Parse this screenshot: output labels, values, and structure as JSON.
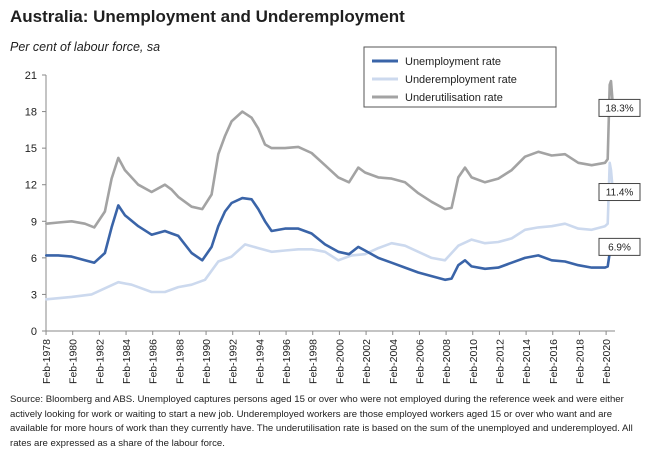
{
  "title": "Australia: Unemployment and Underemployment",
  "subtitle": "Per cent of labour force, sa",
  "source": "Source: Bloomberg and ABS. Unemployed captures persons aged 15 or over who were not employed during the reference week and were either actively looking for work or waiting to start a new job.  Underemployed workers are those employed workers aged 15 or over who want and are available for more hours of work than they currently have.  The underutilisation rate is based on the sum of the unemployed and underemployed. All rates are expressed as a share of the labour force.",
  "chart_data": {
    "type": "line",
    "ylim": [
      0,
      21
    ],
    "yticks": [
      0,
      3,
      6,
      9,
      12,
      15,
      18,
      21
    ],
    "xlim": [
      1978.08,
      2020.75
    ],
    "xticks": [
      "Feb-1978",
      "Feb-1980",
      "Feb-1982",
      "Feb-1984",
      "Feb-1986",
      "Feb-1988",
      "Feb-1990",
      "Feb-1992",
      "Feb-1994",
      "Feb-1996",
      "Feb-1998",
      "Feb-2000",
      "Feb-2002",
      "Feb-2004",
      "Feb-2006",
      "Feb-2008",
      "Feb-2010",
      "Feb-2012",
      "Feb-2014",
      "Feb-2016",
      "Feb-2018",
      "Feb-2020"
    ],
    "legend_position": "top-right",
    "grid": false,
    "series": [
      {
        "name": "Unemployment rate",
        "color": "#3a64a8",
        "points": [
          [
            1978.1,
            6.2
          ],
          [
            1979.0,
            6.2
          ],
          [
            1980.0,
            6.1
          ],
          [
            1981.0,
            5.8
          ],
          [
            1981.7,
            5.6
          ],
          [
            1982.5,
            6.4
          ],
          [
            1983.0,
            8.5
          ],
          [
            1983.5,
            10.3
          ],
          [
            1984.0,
            9.5
          ],
          [
            1985.0,
            8.6
          ],
          [
            1986.0,
            7.9
          ],
          [
            1987.0,
            8.2
          ],
          [
            1987.5,
            8.0
          ],
          [
            1988.0,
            7.8
          ],
          [
            1989.0,
            6.4
          ],
          [
            1989.8,
            5.8
          ],
          [
            1990.5,
            6.9
          ],
          [
            1991.0,
            8.6
          ],
          [
            1991.5,
            9.8
          ],
          [
            1992.0,
            10.5
          ],
          [
            1992.8,
            10.9
          ],
          [
            1993.5,
            10.8
          ],
          [
            1994.0,
            10.0
          ],
          [
            1994.5,
            9.0
          ],
          [
            1995.0,
            8.2
          ],
          [
            1996.0,
            8.4
          ],
          [
            1997.0,
            8.4
          ],
          [
            1998.0,
            8.0
          ],
          [
            1999.0,
            7.1
          ],
          [
            2000.0,
            6.5
          ],
          [
            2000.8,
            6.3
          ],
          [
            2001.5,
            6.9
          ],
          [
            2002.0,
            6.6
          ],
          [
            2003.0,
            6.0
          ],
          [
            2004.0,
            5.6
          ],
          [
            2005.0,
            5.2
          ],
          [
            2006.0,
            4.8
          ],
          [
            2007.0,
            4.5
          ],
          [
            2008.0,
            4.2
          ],
          [
            2008.5,
            4.3
          ],
          [
            2009.0,
            5.4
          ],
          [
            2009.5,
            5.8
          ],
          [
            2010.0,
            5.3
          ],
          [
            2011.0,
            5.1
          ],
          [
            2012.0,
            5.2
          ],
          [
            2013.0,
            5.6
          ],
          [
            2014.0,
            6.0
          ],
          [
            2015.0,
            6.2
          ],
          [
            2016.0,
            5.8
          ],
          [
            2017.0,
            5.7
          ],
          [
            2018.0,
            5.4
          ],
          [
            2019.0,
            5.2
          ],
          [
            2020.0,
            5.2
          ],
          [
            2020.2,
            5.3
          ],
          [
            2020.35,
            6.4
          ],
          [
            2020.45,
            7.3
          ],
          [
            2020.58,
            7.0
          ],
          [
            2020.66,
            6.9
          ]
        ]
      },
      {
        "name": "Underemployment rate",
        "color": "#ccd9ee",
        "points": [
          [
            1978.1,
            2.6
          ],
          [
            1980.0,
            2.8
          ],
          [
            1981.5,
            3.0
          ],
          [
            1982.5,
            3.5
          ],
          [
            1983.5,
            4.0
          ],
          [
            1984.5,
            3.8
          ],
          [
            1986.0,
            3.2
          ],
          [
            1987.0,
            3.2
          ],
          [
            1988.0,
            3.6
          ],
          [
            1989.0,
            3.8
          ],
          [
            1990.0,
            4.2
          ],
          [
            1991.0,
            5.7
          ],
          [
            1992.0,
            6.1
          ],
          [
            1993.0,
            7.1
          ],
          [
            1994.0,
            6.8
          ],
          [
            1995.0,
            6.5
          ],
          [
            1996.0,
            6.6
          ],
          [
            1997.0,
            6.7
          ],
          [
            1998.0,
            6.7
          ],
          [
            1999.0,
            6.5
          ],
          [
            2000.0,
            5.8
          ],
          [
            2001.0,
            6.2
          ],
          [
            2002.0,
            6.3
          ],
          [
            2003.0,
            6.8
          ],
          [
            2004.0,
            7.2
          ],
          [
            2005.0,
            7.0
          ],
          [
            2006.0,
            6.5
          ],
          [
            2007.0,
            6.0
          ],
          [
            2008.0,
            5.8
          ],
          [
            2009.0,
            7.0
          ],
          [
            2010.0,
            7.5
          ],
          [
            2011.0,
            7.2
          ],
          [
            2012.0,
            7.3
          ],
          [
            2013.0,
            7.6
          ],
          [
            2014.0,
            8.3
          ],
          [
            2015.0,
            8.5
          ],
          [
            2016.0,
            8.6
          ],
          [
            2017.0,
            8.8
          ],
          [
            2018.0,
            8.4
          ],
          [
            2019.0,
            8.3
          ],
          [
            2020.0,
            8.6
          ],
          [
            2020.2,
            8.8
          ],
          [
            2020.35,
            13.8
          ],
          [
            2020.45,
            13.2
          ],
          [
            2020.58,
            11.6
          ],
          [
            2020.66,
            11.4
          ]
        ]
      },
      {
        "name": "Underutilisation rate",
        "color": "#a3a3a3",
        "points": [
          [
            1978.1,
            8.8
          ],
          [
            1979.0,
            8.9
          ],
          [
            1980.0,
            9.0
          ],
          [
            1981.0,
            8.8
          ],
          [
            1981.7,
            8.5
          ],
          [
            1982.5,
            9.8
          ],
          [
            1983.0,
            12.5
          ],
          [
            1983.5,
            14.2
          ],
          [
            1984.0,
            13.2
          ],
          [
            1985.0,
            12.0
          ],
          [
            1986.0,
            11.4
          ],
          [
            1987.0,
            12.0
          ],
          [
            1987.5,
            11.6
          ],
          [
            1988.0,
            11.0
          ],
          [
            1989.0,
            10.2
          ],
          [
            1989.8,
            10.0
          ],
          [
            1990.5,
            11.2
          ],
          [
            1991.0,
            14.5
          ],
          [
            1991.5,
            16.0
          ],
          [
            1992.0,
            17.2
          ],
          [
            1992.8,
            18.0
          ],
          [
            1993.5,
            17.5
          ],
          [
            1994.0,
            16.6
          ],
          [
            1994.5,
            15.3
          ],
          [
            1995.0,
            15.0
          ],
          [
            1996.0,
            15.0
          ],
          [
            1997.0,
            15.1
          ],
          [
            1998.0,
            14.6
          ],
          [
            1999.0,
            13.6
          ],
          [
            2000.0,
            12.6
          ],
          [
            2000.8,
            12.2
          ],
          [
            2001.5,
            13.4
          ],
          [
            2002.0,
            13.0
          ],
          [
            2003.0,
            12.6
          ],
          [
            2004.0,
            12.5
          ],
          [
            2005.0,
            12.2
          ],
          [
            2006.0,
            11.3
          ],
          [
            2007.0,
            10.6
          ],
          [
            2008.0,
            10.0
          ],
          [
            2008.5,
            10.1
          ],
          [
            2009.0,
            12.6
          ],
          [
            2009.5,
            13.4
          ],
          [
            2010.0,
            12.6
          ],
          [
            2011.0,
            12.2
          ],
          [
            2012.0,
            12.5
          ],
          [
            2013.0,
            13.2
          ],
          [
            2014.0,
            14.3
          ],
          [
            2015.0,
            14.7
          ],
          [
            2016.0,
            14.4
          ],
          [
            2017.0,
            14.5
          ],
          [
            2018.0,
            13.8
          ],
          [
            2019.0,
            13.6
          ],
          [
            2020.0,
            13.8
          ],
          [
            2020.2,
            14.1
          ],
          [
            2020.35,
            20.2
          ],
          [
            2020.45,
            20.5
          ],
          [
            2020.58,
            18.7
          ],
          [
            2020.66,
            18.3
          ]
        ]
      }
    ],
    "callouts": [
      {
        "series": "Underutilisation rate",
        "label": "18.3%",
        "value": 18.3
      },
      {
        "series": "Underemployment rate",
        "label": "11.4%",
        "value": 11.4
      },
      {
        "series": "Unemployment rate",
        "label": "6.9%",
        "value": 6.9
      }
    ]
  }
}
